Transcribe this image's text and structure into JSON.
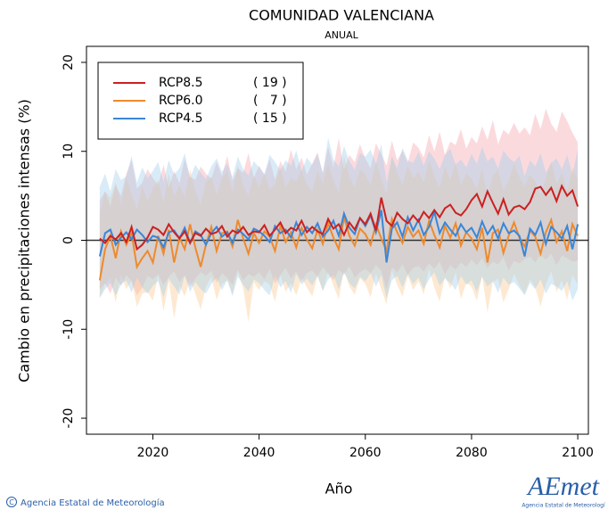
{
  "chart_data": {
    "type": "line",
    "title": "COMUNIDAD VALENCIANA",
    "subtitle": "ANUAL",
    "y_label": "Cambio en precipitaciones intensas (%)",
    "x_label": "Año",
    "footer": "Agencia Estatal de Meteorología",
    "logo": "AEmet",
    "logo_caption": "Agencia Estatal de Meteorologí",
    "xlim": [
      2007.5,
      2102
    ],
    "ylim": [
      -21.8,
      21.8
    ],
    "xticks": [
      2020,
      2040,
      2060,
      2080,
      2100
    ],
    "yticks": [
      -20,
      -10,
      0,
      10,
      20
    ],
    "x": [
      2010,
      2011,
      2012,
      2013,
      2014,
      2015,
      2016,
      2017,
      2018,
      2019,
      2020,
      2021,
      2022,
      2023,
      2024,
      2025,
      2026,
      2027,
      2028,
      2029,
      2030,
      2031,
      2032,
      2033,
      2034,
      2035,
      2036,
      2037,
      2038,
      2039,
      2040,
      2041,
      2042,
      2043,
      2044,
      2045,
      2046,
      2047,
      2048,
      2049,
      2050,
      2051,
      2052,
      2053,
      2054,
      2055,
      2056,
      2057,
      2058,
      2059,
      2060,
      2061,
      2062,
      2063,
      2064,
      2065,
      2066,
      2067,
      2068,
      2069,
      2070,
      2071,
      2072,
      2073,
      2074,
      2075,
      2076,
      2077,
      2078,
      2079,
      2080,
      2081,
      2082,
      2083,
      2084,
      2085,
      2086,
      2087,
      2088,
      2089,
      2090,
      2091,
      2092,
      2093,
      2094,
      2095,
      2096,
      2097,
      2098,
      2099,
      2100
    ],
    "series": [
      {
        "name": "RCP8.5",
        "count_label": "( 19 )",
        "color": "#cc2020",
        "band_color": "#f5a3ad",
        "values": [
          0.2,
          -0.3,
          0.5,
          0.1,
          0.8,
          -0.2,
          1.5,
          -1.0,
          -0.5,
          0.3,
          1.5,
          1.2,
          0.6,
          1.8,
          0.9,
          0.2,
          1.0,
          -0.3,
          0.8,
          0.5,
          1.3,
          0.7,
          0.9,
          1.6,
          0.4,
          1.1,
          0.8,
          1.5,
          0.6,
          1.0,
          0.9,
          1.7,
          0.5,
          1.2,
          2.0,
          0.8,
          1.4,
          1.1,
          2.2,
          0.9,
          1.5,
          1.0,
          0.7,
          2.4,
          1.3,
          1.8,
          0.6,
          2.0,
          1.2,
          2.5,
          1.8,
          3.0,
          1.1,
          4.8,
          2.2,
          1.6,
          3.1,
          2.4,
          1.9,
          2.8,
          2.1,
          3.2,
          2.5,
          3.4,
          2.6,
          3.6,
          4.0,
          3.1,
          2.8,
          3.5,
          4.5,
          5.2,
          3.8,
          5.5,
          4.2,
          3.0,
          4.6,
          2.9,
          3.7,
          3.9,
          3.5,
          4.3,
          5.8,
          6.0,
          5.1,
          5.9,
          4.4,
          6.1,
          5.0,
          5.6,
          3.8
        ],
        "upper": [
          4.5,
          5.5,
          3.8,
          6.2,
          5.0,
          7.5,
          9.0,
          5.8,
          6.5,
          8.0,
          7.0,
          6.2,
          8.5,
          5.9,
          7.8,
          6.4,
          9.2,
          7.1,
          6.8,
          8.3,
          7.5,
          6.9,
          8.8,
          7.2,
          9.5,
          6.7,
          8.1,
          7.6,
          9.8,
          7.0,
          8.4,
          7.3,
          9.1,
          6.8,
          8.9,
          7.7,
          10.2,
          8.0,
          9.3,
          7.4,
          8.6,
          9.9,
          7.5,
          10.5,
          8.2,
          11.5,
          7.9,
          9.6,
          8.8,
          10.8,
          9.2,
          8.1,
          10.9,
          9.7,
          8.4,
          11.2,
          9.0,
          10.1,
          8.7,
          11.0,
          10.4,
          9.3,
          11.8,
          10.0,
          12.2,
          9.6,
          11.1,
          10.7,
          12.5,
          10.3,
          11.6,
          10.9,
          12.8,
          11.3,
          13.5,
          10.8,
          12.4,
          11.9,
          13.2,
          12.0,
          12.7,
          11.8,
          14.2,
          12.5,
          14.8,
          13.1,
          12.2,
          14.5,
          13.4,
          12.1,
          11.0
        ],
        "lower": [
          -5.5,
          -4.8,
          -6.0,
          -4.2,
          -5.1,
          -3.9,
          -4.6,
          -6.2,
          -5.3,
          -4.0,
          -4.4,
          -3.8,
          -5.0,
          -4.1,
          -3.5,
          -4.7,
          -3.9,
          -5.2,
          -4.3,
          -3.6,
          -4.0,
          -3.4,
          -4.8,
          -3.7,
          -4.2,
          -5.0,
          -3.3,
          -4.5,
          -3.8,
          -4.1,
          -3.6,
          -4.4,
          -3.2,
          -4.9,
          -3.9,
          -3.1,
          -4.3,
          -3.5,
          -4.6,
          -3.7,
          -3.4,
          -4.1,
          -3.0,
          -3.8,
          -4.5,
          -3.3,
          -3.9,
          -2.9,
          -4.2,
          -3.6,
          -3.2,
          -3.7,
          -2.8,
          -3.4,
          -5.5,
          -3.0,
          -3.6,
          -2.7,
          -3.9,
          -3.1,
          -2.9,
          -3.5,
          -2.6,
          -3.2,
          -2.4,
          -3.8,
          -2.8,
          -3.3,
          -2.5,
          -3.0,
          -2.2,
          -2.8,
          -2.0,
          -3.1,
          -2.4,
          -2.7,
          -1.9,
          -3.4,
          -2.3,
          -2.6,
          -2.1,
          -1.8,
          -2.5,
          -1.6,
          -2.2,
          -1.5,
          -2.8,
          -1.7,
          -2.0,
          -2.4,
          -2.3
        ]
      },
      {
        "name": "RCP6.0",
        "count_label": "(   7 )",
        "color": "#ee8a2c",
        "band_color": "#f9c98f",
        "values": [
          -4.5,
          -1.0,
          0.5,
          -2.0,
          1.0,
          -0.5,
          0.8,
          -3.0,
          -2.0,
          -1.2,
          -2.5,
          0.5,
          -1.5,
          1.2,
          -2.5,
          0.3,
          -1.0,
          1.8,
          -0.8,
          -3.0,
          -0.5,
          1.5,
          -1.2,
          0.8,
          1.0,
          -0.7,
          2.3,
          0.2,
          -1.5,
          0.8,
          -0.3,
          1.0,
          0.4,
          -1.2,
          1.6,
          -0.2,
          0.9,
          -0.8,
          1.4,
          0.1,
          -0.9,
          1.2,
          -0.4,
          1.9,
          0.3,
          -1.0,
          2.6,
          0.5,
          -0.6,
          1.3,
          0.7,
          -0.5,
          1.8,
          0.2,
          -1.2,
          2.4,
          0.9,
          -0.3,
          1.5,
          0.4,
          1.1,
          -0.4,
          2.2,
          0.6,
          -0.8,
          1.6,
          0.3,
          1.9,
          -0.6,
          0.9,
          0.2,
          -1.0,
          1.4,
          -2.5,
          0.8,
          1.2,
          -1.4,
          0.5,
          2.0,
          0.3,
          -0.7,
          1.1,
          0.4,
          -1.5,
          0.9,
          2.3,
          -0.2,
          1.0,
          -1.2,
          1.8,
          0.5
        ],
        "upper": [
          3.0,
          5.5,
          4.8,
          6.5,
          4.0,
          7.0,
          5.2,
          3.5,
          6.0,
          4.5,
          5.8,
          6.8,
          4.2,
          7.5,
          5.0,
          6.2,
          4.8,
          8.0,
          5.5,
          4.0,
          6.5,
          7.2,
          5.1,
          6.9,
          7.8,
          5.4,
          8.5,
          6.1,
          5.0,
          7.3,
          6.0,
          7.5,
          5.7,
          6.3,
          8.2,
          5.9,
          7.0,
          6.6,
          7.9,
          6.2,
          5.5,
          7.8,
          6.4,
          8.6,
          6.7,
          5.3,
          9.5,
          7.1,
          6.0,
          8.0,
          7.4,
          6.1,
          8.8,
          6.9,
          5.2,
          9.2,
          7.6,
          6.3,
          8.4,
          7.0,
          7.7,
          6.5,
          9.0,
          7.2,
          5.9,
          8.3,
          6.8,
          8.7,
          6.2,
          7.5,
          6.9,
          5.8,
          8.1,
          4.9,
          7.3,
          7.9,
          5.6,
          6.7,
          8.6,
          7.1,
          6.1,
          7.4,
          6.6,
          5.1,
          7.0,
          8.9,
          6.3,
          7.6,
          5.4,
          8.2,
          6.8
        ],
        "lower": [
          -6.5,
          -5.0,
          -4.2,
          -7.0,
          -3.8,
          -5.5,
          -4.5,
          -7.5,
          -6.0,
          -5.8,
          -6.8,
          -4.0,
          -8.0,
          -4.6,
          -8.8,
          -5.1,
          -6.3,
          -4.4,
          -6.0,
          -7.8,
          -5.2,
          -4.1,
          -6.7,
          -4.9,
          -4.5,
          -6.0,
          -3.6,
          -5.4,
          -9.2,
          -4.7,
          -5.6,
          -4.6,
          -5.0,
          -6.9,
          -3.9,
          -5.8,
          -4.8,
          -6.2,
          -4.2,
          -5.3,
          -6.3,
          -4.0,
          -5.7,
          -3.5,
          -5.1,
          -6.6,
          -3.3,
          -5.2,
          -6.1,
          -4.3,
          -4.9,
          -6.4,
          -3.7,
          -5.5,
          -7.2,
          -3.4,
          -5.0,
          -6.3,
          -4.0,
          -5.6,
          -4.6,
          -6.1,
          -3.2,
          -5.3,
          -6.9,
          -4.1,
          -5.4,
          -3.6,
          -6.6,
          -4.8,
          -5.2,
          -6.8,
          -4.0,
          -8.1,
          -4.7,
          -4.3,
          -7.0,
          -5.5,
          -3.8,
          -5.1,
          -6.0,
          -4.4,
          -5.3,
          -7.5,
          -4.9,
          -3.5,
          -5.8,
          -4.5,
          -6.7,
          -3.9,
          -5.0
        ]
      },
      {
        "name": "RCP4.5",
        "count_label": "( 15 )",
        "color": "#3a86d8",
        "band_color": "#9fcdea",
        "values": [
          -1.8,
          0.8,
          1.2,
          -0.5,
          0.3,
          0.9,
          0.1,
          1.2,
          0.6,
          -0.2,
          0.5,
          0.3,
          -0.8,
          0.9,
          1.1,
          0.2,
          1.4,
          -0.3,
          1.0,
          0.6,
          -0.5,
          0.8,
          1.5,
          0.4,
          0.9,
          -0.3,
          1.2,
          0.7,
          0.1,
          1.3,
          1.0,
          0.5,
          -0.2,
          1.6,
          0.8,
          1.2,
          0.3,
          2.0,
          0.6,
          1.5,
          0.8,
          1.9,
          0.4,
          1.1,
          2.2,
          0.5,
          3.0,
          1.4,
          0.7,
          2.5,
          1.6,
          2.8,
          0.9,
          3.4,
          -2.5,
          1.3,
          2.0,
          0.4,
          2.6,
          1.1,
          2.3,
          0.6,
          1.5,
          3.2,
          0.8,
          2.0,
          1.2,
          0.5,
          1.8,
          0.9,
          1.4,
          0.3,
          2.1,
          0.7,
          1.6,
          0.2,
          1.9,
          0.8,
          1.1,
          0.5,
          -1.8,
          1.3,
          0.6,
          2.0,
          -0.4,
          1.5,
          0.9,
          0.2,
          1.6,
          -1.0,
          1.8
        ],
        "upper": [
          6.0,
          7.5,
          5.5,
          8.0,
          6.8,
          7.2,
          9.5,
          6.5,
          8.2,
          7.0,
          7.8,
          8.8,
          6.6,
          9.0,
          7.4,
          8.1,
          9.8,
          7.0,
          8.5,
          7.6,
          6.9,
          8.3,
          9.2,
          7.7,
          8.6,
          7.1,
          9.4,
          8.0,
          7.3,
          8.9,
          8.2,
          7.5,
          9.6,
          8.8,
          7.9,
          9.0,
          8.4,
          10.1,
          7.8,
          9.3,
          8.5,
          9.7,
          7.6,
          11.5,
          9.1,
          8.3,
          10.6,
          8.9,
          7.9,
          9.8,
          9.4,
          10.2,
          8.6,
          10.8,
          6.5,
          9.5,
          8.1,
          10.4,
          9.0,
          8.7,
          9.9,
          8.4,
          10.0,
          9.2,
          8.0,
          9.6,
          10.3,
          8.5,
          9.1,
          8.2,
          9.7,
          8.6,
          10.5,
          8.9,
          9.4,
          8.1,
          10.1,
          9.3,
          8.8,
          9.5,
          7.2,
          9.0,
          8.3,
          9.8,
          7.6,
          8.7,
          9.2,
          8.0,
          9.6,
          7.4,
          10.2
        ],
        "lower": [
          -6.5,
          -5.5,
          -4.8,
          -6.2,
          -5.0,
          -4.5,
          -5.9,
          -4.2,
          -5.3,
          -6.0,
          -5.1,
          -4.6,
          -6.4,
          -4.3,
          -5.2,
          -6.1,
          -4.0,
          -5.8,
          -4.7,
          -5.5,
          -6.0,
          -4.9,
          -4.2,
          -5.6,
          -4.5,
          -6.3,
          -4.1,
          -5.0,
          -5.8,
          -4.4,
          -4.8,
          -5.6,
          -6.2,
          -4.0,
          -5.3,
          -4.6,
          -5.9,
          -3.8,
          -5.0,
          -4.3,
          -5.1,
          -4.0,
          -5.7,
          -4.4,
          -3.9,
          -5.5,
          -3.6,
          -4.8,
          -5.4,
          -4.1,
          -4.6,
          -3.7,
          -5.2,
          -3.9,
          -6.5,
          -4.5,
          -4.0,
          -5.3,
          -3.8,
          -4.9,
          -4.2,
          -5.5,
          -4.4,
          -3.6,
          -5.1,
          -4.3,
          -4.8,
          -5.6,
          -4.0,
          -5.0,
          -4.5,
          -5.8,
          -4.1,
          -5.2,
          -4.6,
          -5.9,
          -4.2,
          -5.0,
          -4.7,
          -5.4,
          -6.2,
          -4.8,
          -5.5,
          -4.4,
          -6.0,
          -4.9,
          -5.2,
          -5.7,
          -4.6,
          -6.8,
          -5.5
        ]
      }
    ]
  }
}
